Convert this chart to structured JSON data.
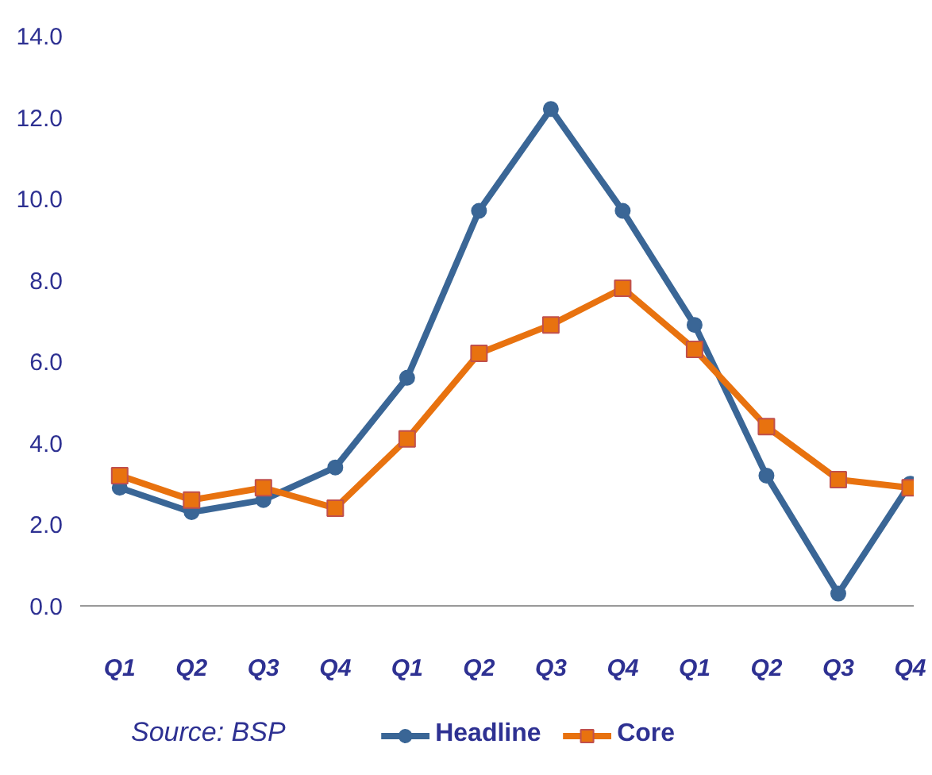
{
  "chart_data": {
    "type": "line",
    "categories": [
      "Q1",
      "Q2",
      "Q3",
      "Q4",
      "Q1",
      "Q2",
      "Q3",
      "Q4",
      "Q1",
      "Q2",
      "Q3",
      "Q4"
    ],
    "series": [
      {
        "name": "Headline",
        "color": "#3a6696",
        "marker": "circle",
        "values": [
          2.9,
          2.3,
          2.6,
          3.4,
          5.6,
          9.7,
          12.2,
          9.7,
          6.9,
          3.2,
          0.3,
          3.0
        ]
      },
      {
        "name": "Core",
        "color": "#e8720f",
        "marker": "square",
        "values": [
          3.2,
          2.6,
          2.9,
          2.4,
          4.1,
          6.2,
          6.9,
          7.8,
          6.3,
          4.4,
          3.1,
          2.9
        ]
      }
    ],
    "ylim": [
      0,
      14
    ],
    "yticks": [
      {
        "value": 0,
        "label": "0.0"
      },
      {
        "value": 2,
        "label": "2.0"
      },
      {
        "value": 4,
        "label": "4.0"
      },
      {
        "value": 6,
        "label": "6.0"
      },
      {
        "value": 8,
        "label": "8.0"
      },
      {
        "value": 10,
        "label": "10.0"
      },
      {
        "value": 12,
        "label": "12.0"
      },
      {
        "value": 14,
        "label": "14.0"
      }
    ],
    "grid": false,
    "legend": "bottom",
    "line_style": "solid",
    "annotations": [
      "Source: BSP"
    ]
  }
}
